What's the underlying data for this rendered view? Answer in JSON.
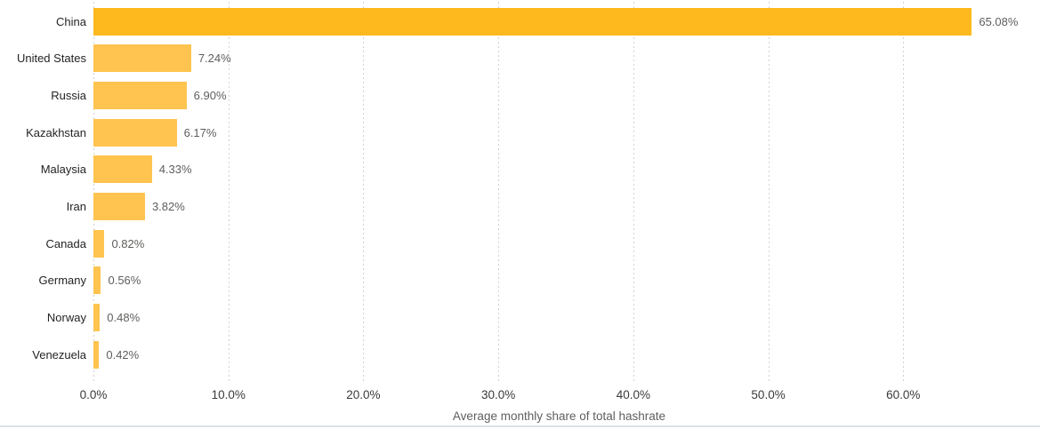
{
  "chart_data": {
    "type": "bar",
    "orientation": "horizontal",
    "title": "",
    "xlabel": "Average monthly share of total hashrate",
    "ylabel": "",
    "categories": [
      "China",
      "United States",
      "Russia",
      "Kazakhstan",
      "Malaysia",
      "Iran",
      "Canada",
      "Germany",
      "Norway",
      "Venezuela"
    ],
    "values": [
      65.08,
      7.24,
      6.9,
      6.17,
      4.33,
      3.82,
      0.82,
      0.56,
      0.48,
      0.42
    ],
    "value_labels": [
      "65.08%",
      "7.24%",
      "6.90%",
      "6.17%",
      "4.33%",
      "3.82%",
      "0.82%",
      "0.56%",
      "0.48%",
      "0.42%"
    ],
    "x_ticks": [
      {
        "value": 0,
        "label": "0.0%"
      },
      {
        "value": 10,
        "label": "10.0%"
      },
      {
        "value": 20,
        "label": "20.0%"
      },
      {
        "value": 30,
        "label": "30.0%"
      },
      {
        "value": 40,
        "label": "40.0%"
      },
      {
        "value": 50,
        "label": "50.0%"
      },
      {
        "value": 60,
        "label": "60.0%"
      }
    ],
    "xlim": [
      0,
      70
    ],
    "grid": "vertical-dotted",
    "legend": "none",
    "highlight_index": 0,
    "colors": {
      "bar_highlight": "#FEB91E",
      "bar_default": "#FEC44F",
      "category_label": "#252423",
      "value_label": "#605E5C",
      "tick_label": "#3B3A39",
      "axis_title": "#605E5C",
      "gridline": "#D2D2D2",
      "bottom_border": "#DCE3E9"
    }
  }
}
